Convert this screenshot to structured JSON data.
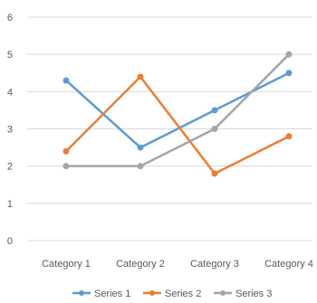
{
  "chart_data": {
    "type": "line",
    "title": "",
    "xlabel": "",
    "ylabel": "",
    "categories": [
      "Category 1",
      "Category 2",
      "Category 3",
      "Category 4"
    ],
    "yticks": [
      "0",
      "1",
      "2",
      "3",
      "4",
      "5",
      "6"
    ],
    "ylim": [
      0,
      6
    ],
    "grid": true,
    "legend_position": "bottom",
    "series": [
      {
        "name": "Series 1",
        "color": "#5b9bd5",
        "values": [
          4.3,
          2.5,
          3.5,
          4.5
        ]
      },
      {
        "name": "Series 2",
        "color": "#ed7d31",
        "values": [
          2.4,
          4.4,
          1.8,
          2.8
        ]
      },
      {
        "name": "Series 3",
        "color": "#a5a5a5",
        "values": [
          2,
          2,
          3,
          5
        ]
      }
    ]
  }
}
